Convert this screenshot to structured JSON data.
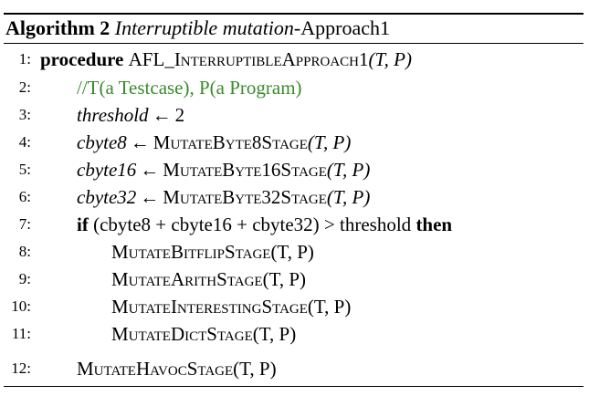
{
  "algorithm": {
    "label": "Algorithm 2",
    "title_italic": "Interruptible mutation",
    "title_rest": "-Approach1"
  },
  "lines": [
    {
      "num": "1:",
      "kw": "procedure",
      "name": "AFL_InterruptibleApproach1",
      "args": "(T, P)"
    },
    {
      "num": "2:",
      "comment": "//T(a Testcase), P(a Program)"
    },
    {
      "num": "3:",
      "var": "threshold",
      "arrow": "←",
      "value": "2"
    },
    {
      "num": "4:",
      "var": "cbyte8",
      "arrow": "←",
      "fn": "MutateByte8Stage",
      "args": "(T, P)"
    },
    {
      "num": "5:",
      "var": "cbyte16",
      "arrow": "←",
      "fn": "MutateByte16Stage",
      "args": "(T, P)"
    },
    {
      "num": "6:",
      "var": "cbyte32",
      "arrow": "←",
      "fn": "MutateByte32Stage",
      "args": "(T, P)"
    },
    {
      "num": "7:",
      "kw_if": "if",
      "cond": "(cbyte8 + cbyte16 + cbyte32) > threshold",
      "kw_then": "then"
    },
    {
      "num": "8:",
      "fn": "MutateBitflipStage",
      "args": "(T, P)"
    },
    {
      "num": "9:",
      "fn": "MutateArithStage",
      "args": "(T, P)"
    },
    {
      "num": "10:",
      "fn": "MutateInterestingStage",
      "args": "(T, P)"
    },
    {
      "num": "11:",
      "fn": "MutateDictStage",
      "args": "(T, P)"
    },
    {
      "num": "12:",
      "fn": "MutateHavocStage",
      "args": "(T, P)"
    }
  ]
}
